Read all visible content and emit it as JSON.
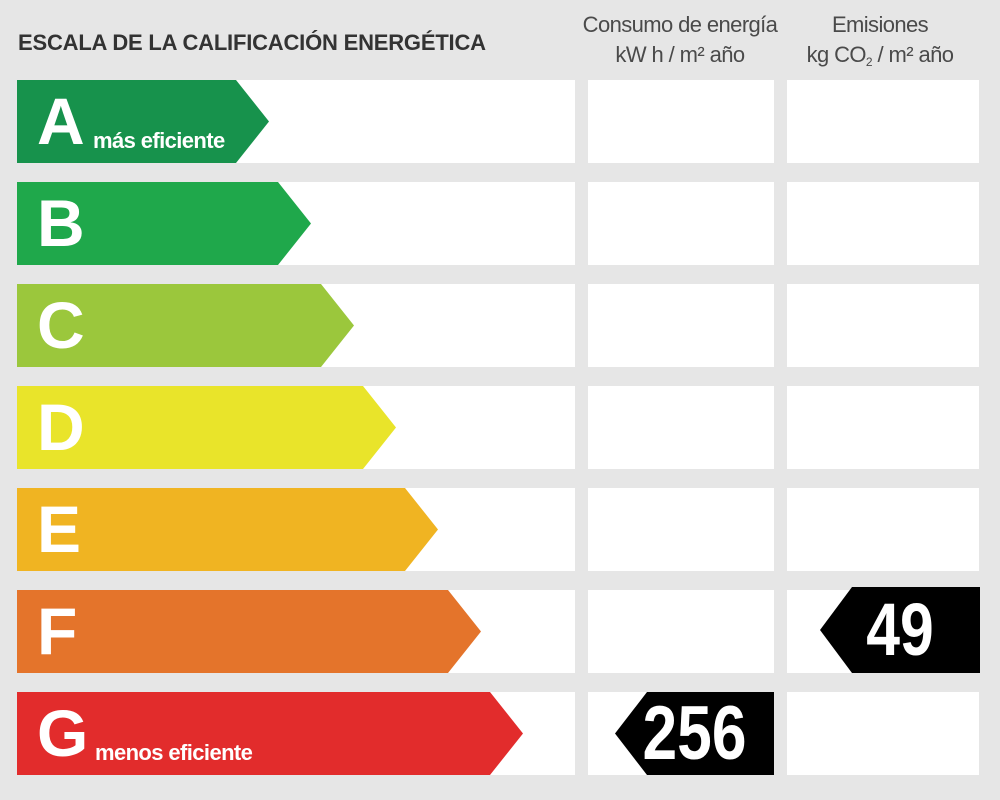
{
  "header": {
    "title": "ESCALA DE LA CALIFICACIÓN ENERGÉTICA",
    "energy_col": {
      "line1": "Consumo de energía",
      "line2_a": "kW h",
      "line2_b": " / m² año"
    },
    "emissions_col": {
      "line1": "Emisiones",
      "line2_a": "kg CO",
      "line2_sub": "2",
      "line2_b": " / m² año"
    }
  },
  "ratings": [
    {
      "letter": "A",
      "sublabel": "más eficiente",
      "color": "#17924c"
    },
    {
      "letter": "B",
      "sublabel": "",
      "color": "#1fa84b"
    },
    {
      "letter": "C",
      "sublabel": "",
      "color": "#9bc73c"
    },
    {
      "letter": "D",
      "sublabel": "",
      "color": "#e9e42a"
    },
    {
      "letter": "E",
      "sublabel": "",
      "color": "#f0b422"
    },
    {
      "letter": "F",
      "sublabel": "",
      "color": "#e4742b"
    },
    {
      "letter": "G",
      "sublabel": "menos eficiente",
      "color": "#e22c2c"
    }
  ],
  "energy_consumption": {
    "rating": "G",
    "value": "256"
  },
  "emissions": {
    "rating": "F",
    "value": "49"
  }
}
